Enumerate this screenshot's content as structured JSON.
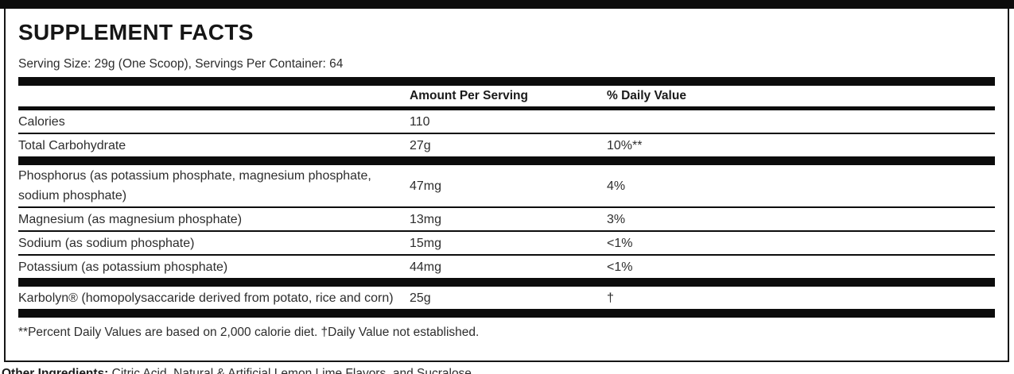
{
  "label": {
    "title": "SUPPLEMENT FACTS",
    "serving_info": "Serving Size: 29g (One Scoop), Servings Per Container: 64",
    "columns": {
      "amount": "Amount Per Serving",
      "daily_value": "% Daily Value"
    },
    "rows": [
      {
        "name": "Calories",
        "amount": "110",
        "dv": "",
        "sep_after": "thin"
      },
      {
        "name": "Total Carbohydrate",
        "amount": "27g",
        "dv": "10%**",
        "sep_after": "thick"
      },
      {
        "name": "Phosphorus (as potassium phosphate, magnesium phosphate, sodium phosphate)",
        "amount": "47mg",
        "dv": "4%",
        "sep_after": "thin"
      },
      {
        "name": "Magnesium (as magnesium phosphate)",
        "amount": "13mg",
        "dv": "3%",
        "sep_after": "thin"
      },
      {
        "name": "Sodium (as sodium phosphate)",
        "amount": "15mg",
        "dv": "<1%",
        "sep_after": "thin"
      },
      {
        "name": "Potassium (as potassium phosphate)",
        "amount": "44mg",
        "dv": "<1%",
        "sep_after": "thick"
      },
      {
        "name": "Karbolyn® (homopolysaccaride derived from potato, rice and corn)",
        "amount": "25g",
        "dv": "†",
        "sep_after": "thick"
      }
    ],
    "footnote": "**Percent Daily Values are based on 2,000 calorie diet. †Daily Value not established.",
    "colors": {
      "bar": "#0c0c0c",
      "text": "#2d2d2d",
      "heading": "#161616"
    }
  },
  "other_ingredients": {
    "label": "Other Ingredients:",
    "text": " Citric Acid, Natural & Artificial Lemon Lime Flavors, and Sucralose."
  }
}
